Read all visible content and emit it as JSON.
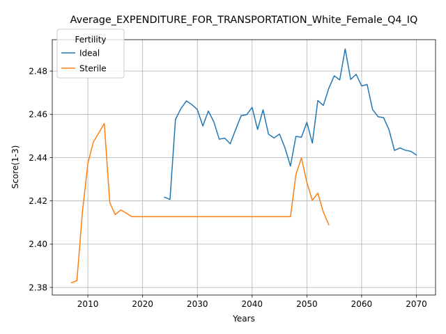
{
  "chart_data": {
    "type": "line",
    "title": "Average_EXPENDITURE_FOR_TRANSPORTATION_White_Female_Q4_IQ",
    "xlabel": "Years",
    "ylabel": "Score(1-3)",
    "xlim": [
      2003.5,
      2073.5
    ],
    "ylim": [
      2.3765,
      2.4945
    ],
    "xticks": [
      2010,
      2020,
      2030,
      2040,
      2050,
      2060,
      2070
    ],
    "yticks": [
      2.38,
      2.4,
      2.42,
      2.44,
      2.46,
      2.48
    ],
    "ytick_labels": [
      "2.38",
      "2.40",
      "2.42",
      "2.44",
      "2.46",
      "2.48"
    ],
    "grid": true,
    "legend": {
      "title": "Fertility",
      "placement": "top-left"
    },
    "series": [
      {
        "name": "Ideal",
        "color": "#1f77b4",
        "x": [
          2024,
          2025,
          2026,
          2027,
          2028,
          2029,
          2030,
          2031,
          2032,
          2033,
          2034,
          2035,
          2036,
          2037,
          2038,
          2039,
          2040,
          2041,
          2042,
          2043,
          2044,
          2045,
          2046,
          2047,
          2048,
          2049,
          2050,
          2051,
          2052,
          2053,
          2054,
          2055,
          2056,
          2057,
          2058,
          2059,
          2060,
          2061,
          2062,
          2063,
          2064,
          2065,
          2066,
          2067,
          2068,
          2069,
          2070
        ],
        "y": [
          2.4217,
          2.4207,
          2.4576,
          2.4627,
          2.4662,
          2.4645,
          2.4622,
          2.4546,
          2.4615,
          2.4566,
          2.4485,
          2.449,
          2.4464,
          2.453,
          2.4594,
          2.4598,
          2.4632,
          2.453,
          2.4621,
          2.4508,
          2.4491,
          2.4509,
          2.4445,
          2.4361,
          2.4498,
          2.4494,
          2.4563,
          2.4467,
          2.4664,
          2.4641,
          2.472,
          2.4778,
          2.4759,
          2.4902,
          2.4761,
          2.4785,
          2.4731,
          2.4738,
          2.4622,
          2.4589,
          2.4585,
          2.4529,
          2.4433,
          2.4445,
          2.4434,
          2.4429,
          2.4412
        ]
      },
      {
        "name": "Sterile",
        "color": "#ff7f0e",
        "x": [
          2007,
          2008,
          2009,
          2010,
          2011,
          2012,
          2013,
          2014,
          2015,
          2016,
          2017,
          2018,
          2019,
          2020,
          2021,
          2022,
          2023,
          2024,
          2025,
          2026,
          2027,
          2028,
          2029,
          2030,
          2031,
          2032,
          2033,
          2034,
          2035,
          2036,
          2037,
          2038,
          2039,
          2040,
          2041,
          2042,
          2043,
          2044,
          2045,
          2046,
          2047,
          2048,
          2049,
          2050,
          2051,
          2052,
          2053,
          2054
        ],
        "y": [
          2.3822,
          2.3831,
          2.4147,
          2.4373,
          2.4472,
          2.4514,
          2.4558,
          2.4192,
          2.4137,
          2.4158,
          2.4144,
          2.4127,
          2.4127,
          2.4127,
          2.4127,
          2.4127,
          2.4127,
          2.4127,
          2.4127,
          2.4127,
          2.4127,
          2.4127,
          2.4127,
          2.4127,
          2.4127,
          2.4127,
          2.4127,
          2.4127,
          2.4127,
          2.4127,
          2.4127,
          2.4127,
          2.4127,
          2.4127,
          2.4127,
          2.4127,
          2.4127,
          2.4127,
          2.4127,
          2.4127,
          2.4127,
          2.4321,
          2.4399,
          2.4285,
          2.4203,
          2.4236,
          2.4149,
          2.409
        ]
      }
    ]
  }
}
